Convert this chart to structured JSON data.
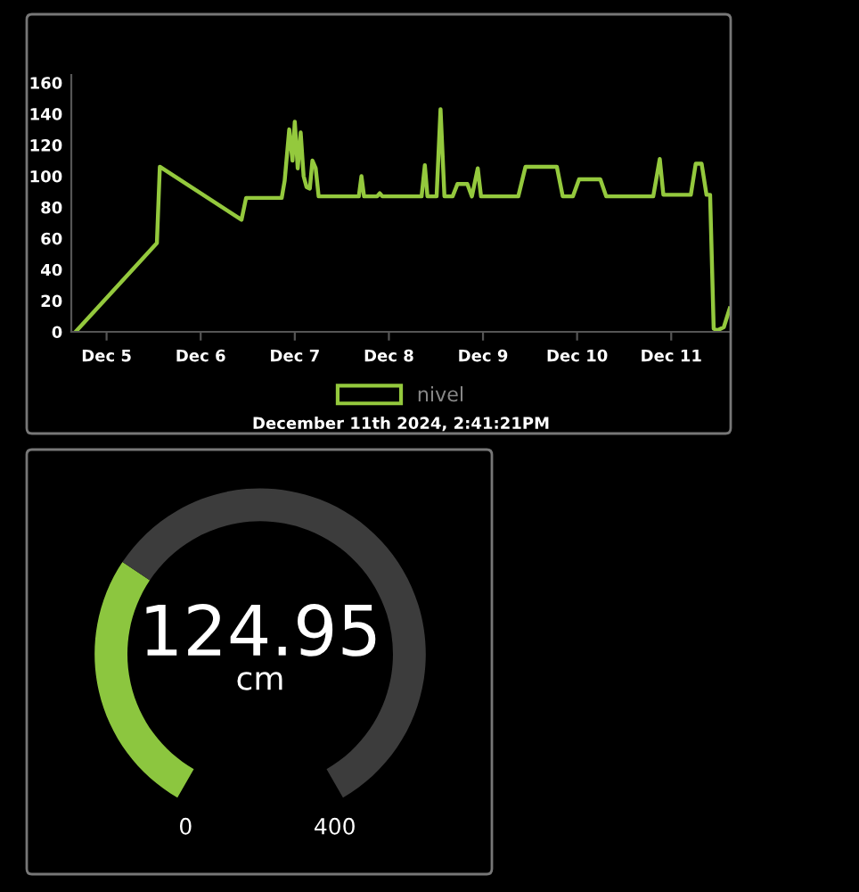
{
  "chart_data": [
    {
      "type": "line",
      "legend": "bottom",
      "annotations": [
        "December 11th 2024, 2:41:21PM"
      ],
      "xlim": [
        "2024-12-04T15:00",
        "2024-12-11T15:10"
      ],
      "ylim": [
        0,
        165
      ],
      "xticks": [
        {
          "value": "2024-12-05",
          "label": "Dec 5"
        },
        {
          "value": "2024-12-06",
          "label": "Dec 6"
        },
        {
          "value": "2024-12-07",
          "label": "Dec 7"
        },
        {
          "value": "2024-12-08",
          "label": "Dec 8"
        },
        {
          "value": "2024-12-09",
          "label": "Dec 9"
        },
        {
          "value": "2024-12-10",
          "label": "Dec 10"
        },
        {
          "value": "2024-12-11",
          "label": "Dec 11"
        }
      ],
      "yticks": [
        0,
        20,
        40,
        60,
        80,
        100,
        120,
        140,
        160
      ],
      "x": [
        "2024-12-04T16:05",
        "2024-12-05T12:50",
        "2024-12-05T13:35",
        "2024-12-06T10:25",
        "2024-12-06T11:35",
        "2024-12-06T20:40",
        "2024-12-06T21:25",
        "2024-12-06T22:35",
        "2024-12-06T23:25",
        "2024-12-07T00:00",
        "2024-12-07T00:45",
        "2024-12-07T01:30",
        "2024-12-07T02:15",
        "2024-12-07T03:00",
        "2024-12-07T03:50",
        "2024-12-07T04:30",
        "2024-12-07T05:20",
        "2024-12-07T06:05",
        "2024-12-07T16:20",
        "2024-12-07T17:00",
        "2024-12-07T17:40",
        "2024-12-07T21:00",
        "2024-12-07T21:40",
        "2024-12-07T22:20",
        "2024-12-08T08:20",
        "2024-12-08T09:10",
        "2024-12-08T09:50",
        "2024-12-08T12:10",
        "2024-12-08T13:10",
        "2024-12-08T14:10",
        "2024-12-08T16:15",
        "2024-12-08T17:30",
        "2024-12-08T20:00",
        "2024-12-08T21:10",
        "2024-12-08T22:40",
        "2024-12-08T23:30",
        "2024-12-09T09:00",
        "2024-12-09T10:50",
        "2024-12-09T18:50",
        "2024-12-09T20:20",
        "2024-12-09T22:55",
        "2024-12-10T00:30",
        "2024-12-10T05:55",
        "2024-12-10T07:25",
        "2024-12-10T19:25",
        "2024-12-10T21:05",
        "2024-12-10T22:00",
        "2024-12-11T05:00",
        "2024-12-11T06:15",
        "2024-12-11T07:45",
        "2024-12-11T09:00",
        "2024-12-11T09:55",
        "2024-12-11T10:50",
        "2024-12-11T11:50",
        "2024-12-11T13:25",
        "2024-12-11T14:55"
      ],
      "series": [
        {
          "name": "nivel",
          "color": "#94c93d",
          "values": [
            0,
            57,
            106,
            72,
            86,
            86,
            97,
            130,
            110,
            135,
            105,
            128,
            100,
            93,
            92,
            110,
            105,
            87,
            87,
            100,
            87,
            87,
            89,
            87,
            87,
            107,
            87,
            87,
            143,
            87,
            87,
            95,
            95,
            87,
            105,
            87,
            87,
            106,
            106,
            87,
            87,
            98,
            98,
            87,
            87,
            111,
            88,
            88,
            108,
            108,
            88,
            88,
            2,
            1,
            3,
            15
          ]
        }
      ]
    },
    {
      "type": "donut",
      "categories": [
        null,
        null
      ],
      "values": [
        31.24,
        68.76
      ],
      "colors": [
        "#8cc63f",
        "#3c3c3c"
      ],
      "annotations": [
        "124.95",
        "cm",
        "0",
        "400"
      ]
    }
  ]
}
